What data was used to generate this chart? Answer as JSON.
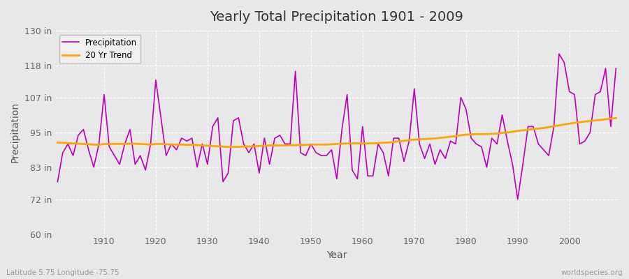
{
  "title": "Yearly Total Precipitation 1901 - 2009",
  "xlabel": "Year",
  "ylabel": "Precipitation",
  "subtitle_left": "Latitude 5.75 Longitude -75.75",
  "subtitle_right": "worldspecies.org",
  "precipitation_line_color": "#BB00BB",
  "trend_line_color": "#FFA500",
  "bg_color": "#E8E8E8",
  "plot_bg_color": "#E8E8E8",
  "grid_color": "#FFFFFF",
  "ylim": [
    60,
    130
  ],
  "yticks": [
    60,
    72,
    83,
    95,
    107,
    118,
    130
  ],
  "ytick_labels": [
    "60 in",
    "72 in",
    "83 in",
    "95 in",
    "107 in",
    "118 in",
    "130 in"
  ],
  "years": [
    1901,
    1902,
    1903,
    1904,
    1905,
    1906,
    1907,
    1908,
    1909,
    1910,
    1911,
    1912,
    1913,
    1914,
    1915,
    1916,
    1917,
    1918,
    1919,
    1920,
    1921,
    1922,
    1923,
    1924,
    1925,
    1926,
    1927,
    1928,
    1929,
    1930,
    1931,
    1932,
    1933,
    1934,
    1935,
    1936,
    1937,
    1938,
    1939,
    1940,
    1941,
    1942,
    1943,
    1944,
    1945,
    1946,
    1947,
    1948,
    1949,
    1950,
    1951,
    1952,
    1953,
    1954,
    1955,
    1956,
    1957,
    1958,
    1959,
    1960,
    1961,
    1962,
    1963,
    1964,
    1965,
    1966,
    1967,
    1968,
    1969,
    1970,
    1971,
    1972,
    1973,
    1974,
    1975,
    1976,
    1977,
    1978,
    1979,
    1980,
    1981,
    1982,
    1983,
    1984,
    1985,
    1986,
    1987,
    1988,
    1989,
    1990,
    1991,
    1992,
    1993,
    1994,
    1995,
    1996,
    1997,
    1998,
    1999,
    2000,
    2001,
    2002,
    2003,
    2004,
    2005,
    2006,
    2007,
    2008,
    2009
  ],
  "precip": [
    78,
    88,
    91,
    87,
    94,
    96,
    89,
    83,
    91,
    108,
    90,
    87,
    84,
    91,
    96,
    84,
    87,
    82,
    91,
    113,
    100,
    87,
    91,
    89,
    93,
    92,
    93,
    83,
    91,
    84,
    97,
    100,
    78,
    81,
    99,
    100,
    91,
    88,
    91,
    81,
    93,
    84,
    93,
    94,
    91,
    91,
    116,
    88,
    87,
    91,
    88,
    87,
    87,
    89,
    79,
    96,
    108,
    82,
    79,
    97,
    80,
    80,
    91,
    88,
    80,
    93,
    93,
    85,
    92,
    110,
    91,
    86,
    91,
    84,
    89,
    86,
    92,
    91,
    107,
    103,
    93,
    91,
    90,
    83,
    93,
    91,
    101,
    92,
    84,
    72,
    84,
    97,
    97,
    91,
    89,
    87,
    97,
    122,
    119,
    109,
    108,
    91,
    92,
    95,
    108,
    109,
    117,
    97,
    117
  ],
  "trend_years": [
    1901,
    1902,
    1903,
    1904,
    1905,
    1906,
    1907,
    1908,
    1909,
    1910,
    1911,
    1912,
    1913,
    1914,
    1915,
    1916,
    1917,
    1918,
    1919,
    1920,
    1921,
    1922,
    1923,
    1924,
    1925,
    1926,
    1927,
    1928,
    1929,
    1930,
    1931,
    1932,
    1933,
    1934,
    1935,
    1936,
    1937,
    1938,
    1939,
    1940,
    1941,
    1942,
    1943,
    1944,
    1945,
    1946,
    1947,
    1948,
    1949,
    1950,
    1951,
    1952,
    1953,
    1954,
    1955,
    1956,
    1957,
    1958,
    1959,
    1960,
    1961,
    1962,
    1963,
    1964,
    1965,
    1966,
    1967,
    1968,
    1969,
    1970,
    1971,
    1972,
    1973,
    1974,
    1975,
    1976,
    1977,
    1978,
    1979,
    1980,
    1981,
    1982,
    1983,
    1984,
    1985,
    1986,
    1987,
    1988,
    1989,
    1990,
    1991,
    1992,
    1993,
    1994,
    1995,
    1996,
    1997,
    1998,
    1999,
    2000,
    2001,
    2002,
    2003,
    2004,
    2005,
    2006,
    2007,
    2008,
    2009
  ],
  "trend": [
    91.5,
    91.4,
    91.3,
    91.2,
    91.1,
    91.0,
    90.9,
    90.8,
    90.7,
    91.0,
    91.0,
    91.0,
    91.0,
    91.0,
    91.1,
    91.1,
    91.0,
    90.9,
    90.8,
    91.0,
    91.0,
    90.9,
    90.8,
    90.8,
    90.8,
    90.7,
    90.7,
    90.6,
    90.5,
    90.4,
    90.3,
    90.2,
    90.1,
    90.0,
    90.0,
    90.0,
    90.1,
    90.1,
    90.2,
    90.3,
    90.4,
    90.5,
    90.5,
    90.5,
    90.5,
    90.6,
    90.6,
    90.7,
    90.7,
    90.8,
    90.8,
    90.8,
    90.8,
    90.9,
    91.0,
    91.1,
    91.2,
    91.2,
    91.2,
    91.2,
    91.2,
    91.2,
    91.3,
    91.4,
    91.5,
    91.7,
    91.9,
    92.1,
    92.3,
    92.5,
    92.6,
    92.7,
    92.8,
    92.9,
    93.1,
    93.3,
    93.5,
    93.7,
    94.0,
    94.2,
    94.3,
    94.4,
    94.4,
    94.4,
    94.5,
    94.6,
    94.8,
    95.0,
    95.2,
    95.5,
    95.7,
    95.9,
    96.1,
    96.3,
    96.5,
    96.8,
    97.1,
    97.4,
    97.7,
    98.0,
    98.3,
    98.5,
    98.7,
    98.9,
    99.1,
    99.3,
    99.5,
    99.7,
    99.9
  ]
}
